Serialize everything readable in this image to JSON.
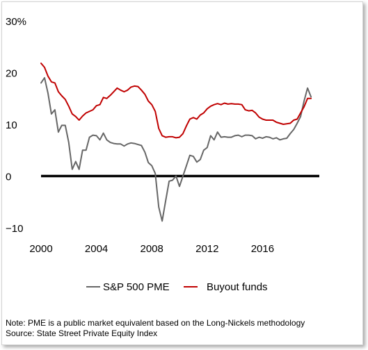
{
  "chart_data": {
    "type": "line",
    "title": "",
    "xlabel": "",
    "ylabel": "",
    "y_unit": "%",
    "x_tick_labels": [
      "2000",
      "2004",
      "2008",
      "2012",
      "2016"
    ],
    "x_ticks": [
      2000,
      2004,
      2008,
      2012,
      2016
    ],
    "y_tick_labels": [
      "30%",
      "20",
      "10",
      "0",
      "−10"
    ],
    "y_ticks": [
      30,
      20,
      10,
      0,
      -10
    ],
    "xlim": [
      2000,
      2020
    ],
    "ylim": [
      -10,
      30
    ],
    "zero_line": true,
    "grid": false,
    "legend_position": "bottom-center",
    "series": [
      {
        "name": "S&P 500 PME",
        "color": "#666666",
        "points": [
          [
            2000.0,
            18.0
          ],
          [
            2000.25,
            19.0
          ],
          [
            2000.5,
            16.0
          ],
          [
            2000.75,
            12.0
          ],
          [
            2001.0,
            12.8
          ],
          [
            2001.25,
            8.5
          ],
          [
            2001.5,
            9.8
          ],
          [
            2001.75,
            9.8
          ],
          [
            2002.0,
            6.5
          ],
          [
            2002.25,
            1.3
          ],
          [
            2002.5,
            2.8
          ],
          [
            2002.75,
            1.3
          ],
          [
            2003.0,
            5.0
          ],
          [
            2003.25,
            5.0
          ],
          [
            2003.5,
            7.5
          ],
          [
            2003.75,
            7.9
          ],
          [
            2004.0,
            7.8
          ],
          [
            2004.25,
            7.0
          ],
          [
            2004.5,
            8.3
          ],
          [
            2004.75,
            7.0
          ],
          [
            2005.0,
            6.5
          ],
          [
            2005.25,
            6.3
          ],
          [
            2005.5,
            6.2
          ],
          [
            2005.75,
            6.2
          ],
          [
            2006.0,
            5.8
          ],
          [
            2006.25,
            6.2
          ],
          [
            2006.5,
            6.4
          ],
          [
            2006.75,
            6.3
          ],
          [
            2007.0,
            6.1
          ],
          [
            2007.25,
            5.9
          ],
          [
            2007.5,
            4.6
          ],
          [
            2007.75,
            2.6
          ],
          [
            2008.0,
            2.0
          ],
          [
            2008.25,
            0.5
          ],
          [
            2008.5,
            -6.0
          ],
          [
            2008.75,
            -8.7
          ],
          [
            2009.0,
            -4.8
          ],
          [
            2009.25,
            -1.0
          ],
          [
            2009.5,
            -0.8
          ],
          [
            2009.75,
            0.0
          ],
          [
            2010.0,
            -2.0
          ],
          [
            2010.25,
            0.0
          ],
          [
            2010.5,
            2.0
          ],
          [
            2010.75,
            4.0
          ],
          [
            2011.0,
            3.8
          ],
          [
            2011.25,
            2.7
          ],
          [
            2011.5,
            3.2
          ],
          [
            2011.75,
            5.0
          ],
          [
            2012.0,
            5.5
          ],
          [
            2012.25,
            7.8
          ],
          [
            2012.5,
            7.0
          ],
          [
            2012.75,
            8.5
          ],
          [
            2013.0,
            7.5
          ],
          [
            2013.25,
            7.6
          ],
          [
            2013.5,
            7.5
          ],
          [
            2013.75,
            7.5
          ],
          [
            2014.0,
            7.8
          ],
          [
            2014.25,
            7.9
          ],
          [
            2014.5,
            7.6
          ],
          [
            2014.75,
            7.9
          ],
          [
            2015.0,
            7.9
          ],
          [
            2015.25,
            7.8
          ],
          [
            2015.5,
            7.2
          ],
          [
            2015.75,
            7.5
          ],
          [
            2016.0,
            7.3
          ],
          [
            2016.25,
            7.6
          ],
          [
            2016.5,
            7.5
          ],
          [
            2016.75,
            7.2
          ],
          [
            2017.0,
            7.4
          ],
          [
            2017.25,
            7.0
          ],
          [
            2017.5,
            7.2
          ],
          [
            2017.75,
            7.3
          ],
          [
            2018.0,
            8.2
          ],
          [
            2018.25,
            9.0
          ],
          [
            2018.5,
            10.2
          ],
          [
            2018.75,
            11.5
          ],
          [
            2019.0,
            14.5
          ],
          [
            2019.25,
            17.0
          ],
          [
            2019.5,
            15.3
          ]
        ]
      },
      {
        "name": "Buyout funds",
        "color": "#c00000",
        "points": [
          [
            2000.0,
            21.8
          ],
          [
            2000.25,
            21.0
          ],
          [
            2000.5,
            19.3
          ],
          [
            2000.75,
            18.2
          ],
          [
            2001.0,
            18.0
          ],
          [
            2001.25,
            16.3
          ],
          [
            2001.5,
            15.5
          ],
          [
            2001.75,
            14.8
          ],
          [
            2002.0,
            13.5
          ],
          [
            2002.25,
            12.0
          ],
          [
            2002.5,
            11.5
          ],
          [
            2002.75,
            10.8
          ],
          [
            2003.0,
            11.6
          ],
          [
            2003.25,
            12.2
          ],
          [
            2003.5,
            12.5
          ],
          [
            2003.75,
            12.8
          ],
          [
            2004.0,
            13.6
          ],
          [
            2004.25,
            13.8
          ],
          [
            2004.5,
            15.2
          ],
          [
            2004.75,
            15.0
          ],
          [
            2005.0,
            15.6
          ],
          [
            2005.25,
            16.3
          ],
          [
            2005.5,
            17.0
          ],
          [
            2005.75,
            16.6
          ],
          [
            2006.0,
            16.3
          ],
          [
            2006.25,
            16.6
          ],
          [
            2006.5,
            17.2
          ],
          [
            2006.75,
            17.4
          ],
          [
            2007.0,
            17.3
          ],
          [
            2007.25,
            16.6
          ],
          [
            2007.5,
            15.8
          ],
          [
            2007.75,
            14.5
          ],
          [
            2008.0,
            13.8
          ],
          [
            2008.25,
            12.5
          ],
          [
            2008.5,
            9.2
          ],
          [
            2008.75,
            7.8
          ],
          [
            2009.0,
            7.5
          ],
          [
            2009.25,
            7.6
          ],
          [
            2009.5,
            7.6
          ],
          [
            2009.75,
            7.4
          ],
          [
            2010.0,
            7.5
          ],
          [
            2010.25,
            8.2
          ],
          [
            2010.5,
            9.7
          ],
          [
            2010.75,
            11.0
          ],
          [
            2011.0,
            11.3
          ],
          [
            2011.25,
            11.0
          ],
          [
            2011.5,
            11.8
          ],
          [
            2011.75,
            12.2
          ],
          [
            2012.0,
            13.0
          ],
          [
            2012.25,
            13.5
          ],
          [
            2012.5,
            13.8
          ],
          [
            2012.75,
            14.0
          ],
          [
            2013.0,
            13.8
          ],
          [
            2013.25,
            14.1
          ],
          [
            2013.5,
            13.9
          ],
          [
            2013.75,
            14.0
          ],
          [
            2014.0,
            13.9
          ],
          [
            2014.25,
            13.9
          ],
          [
            2014.5,
            13.8
          ],
          [
            2014.75,
            12.8
          ],
          [
            2015.0,
            12.6
          ],
          [
            2015.25,
            12.7
          ],
          [
            2015.5,
            12.2
          ],
          [
            2015.75,
            11.4
          ],
          [
            2016.0,
            11.0
          ],
          [
            2016.25,
            10.8
          ],
          [
            2016.5,
            10.8
          ],
          [
            2016.75,
            10.8
          ],
          [
            2017.0,
            10.4
          ],
          [
            2017.25,
            10.2
          ],
          [
            2017.5,
            10.0
          ],
          [
            2017.75,
            10.1
          ],
          [
            2018.0,
            10.2
          ],
          [
            2018.25,
            10.8
          ],
          [
            2018.5,
            11.0
          ],
          [
            2018.75,
            12.2
          ],
          [
            2019.0,
            13.4
          ],
          [
            2019.25,
            15.0
          ],
          [
            2019.5,
            15.0
          ]
        ]
      }
    ]
  },
  "notes": {
    "line1": "Note: PME is a public market equivalent based on the Long-Nickels methodology",
    "line2": "Source: State Street Private Equity Index"
  }
}
